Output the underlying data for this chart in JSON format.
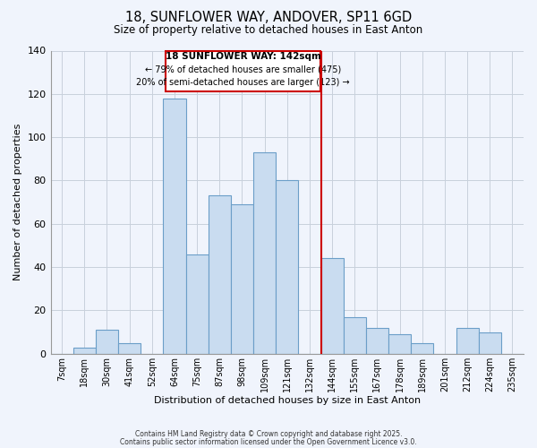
{
  "title_line1": "18, SUNFLOWER WAY, ANDOVER, SP11 6GD",
  "title_line2": "Size of property relative to detached houses in East Anton",
  "xlabel": "Distribution of detached houses by size in East Anton",
  "ylabel": "Number of detached properties",
  "bin_labels": [
    "7sqm",
    "18sqm",
    "30sqm",
    "41sqm",
    "52sqm",
    "64sqm",
    "75sqm",
    "87sqm",
    "98sqm",
    "109sqm",
    "121sqm",
    "132sqm",
    "144sqm",
    "155sqm",
    "167sqm",
    "178sqm",
    "189sqm",
    "201sqm",
    "212sqm",
    "224sqm",
    "235sqm"
  ],
  "bar_values": [
    0,
    3,
    11,
    5,
    0,
    118,
    46,
    73,
    69,
    93,
    80,
    0,
    44,
    17,
    12,
    9,
    5,
    0,
    12,
    10,
    0
  ],
  "bar_color": "#c9dcf0",
  "bar_edge_color": "#6b9ec8",
  "grid_color": "#c8d0dc",
  "marker_line_color": "#cc0000",
  "annotation_line1": "18 SUNFLOWER WAY: 142sqm",
  "annotation_line2": "← 79% of detached houses are smaller (475)",
  "annotation_line3": "20% of semi-detached houses are larger (123) →",
  "ylim": [
    0,
    140
  ],
  "yticks": [
    0,
    20,
    40,
    60,
    80,
    100,
    120,
    140
  ],
  "footnote1": "Contains HM Land Registry data © Crown copyright and database right 2025.",
  "footnote2": "Contains public sector information licensed under the Open Government Licence v3.0.",
  "background_color": "#f0f4fc"
}
